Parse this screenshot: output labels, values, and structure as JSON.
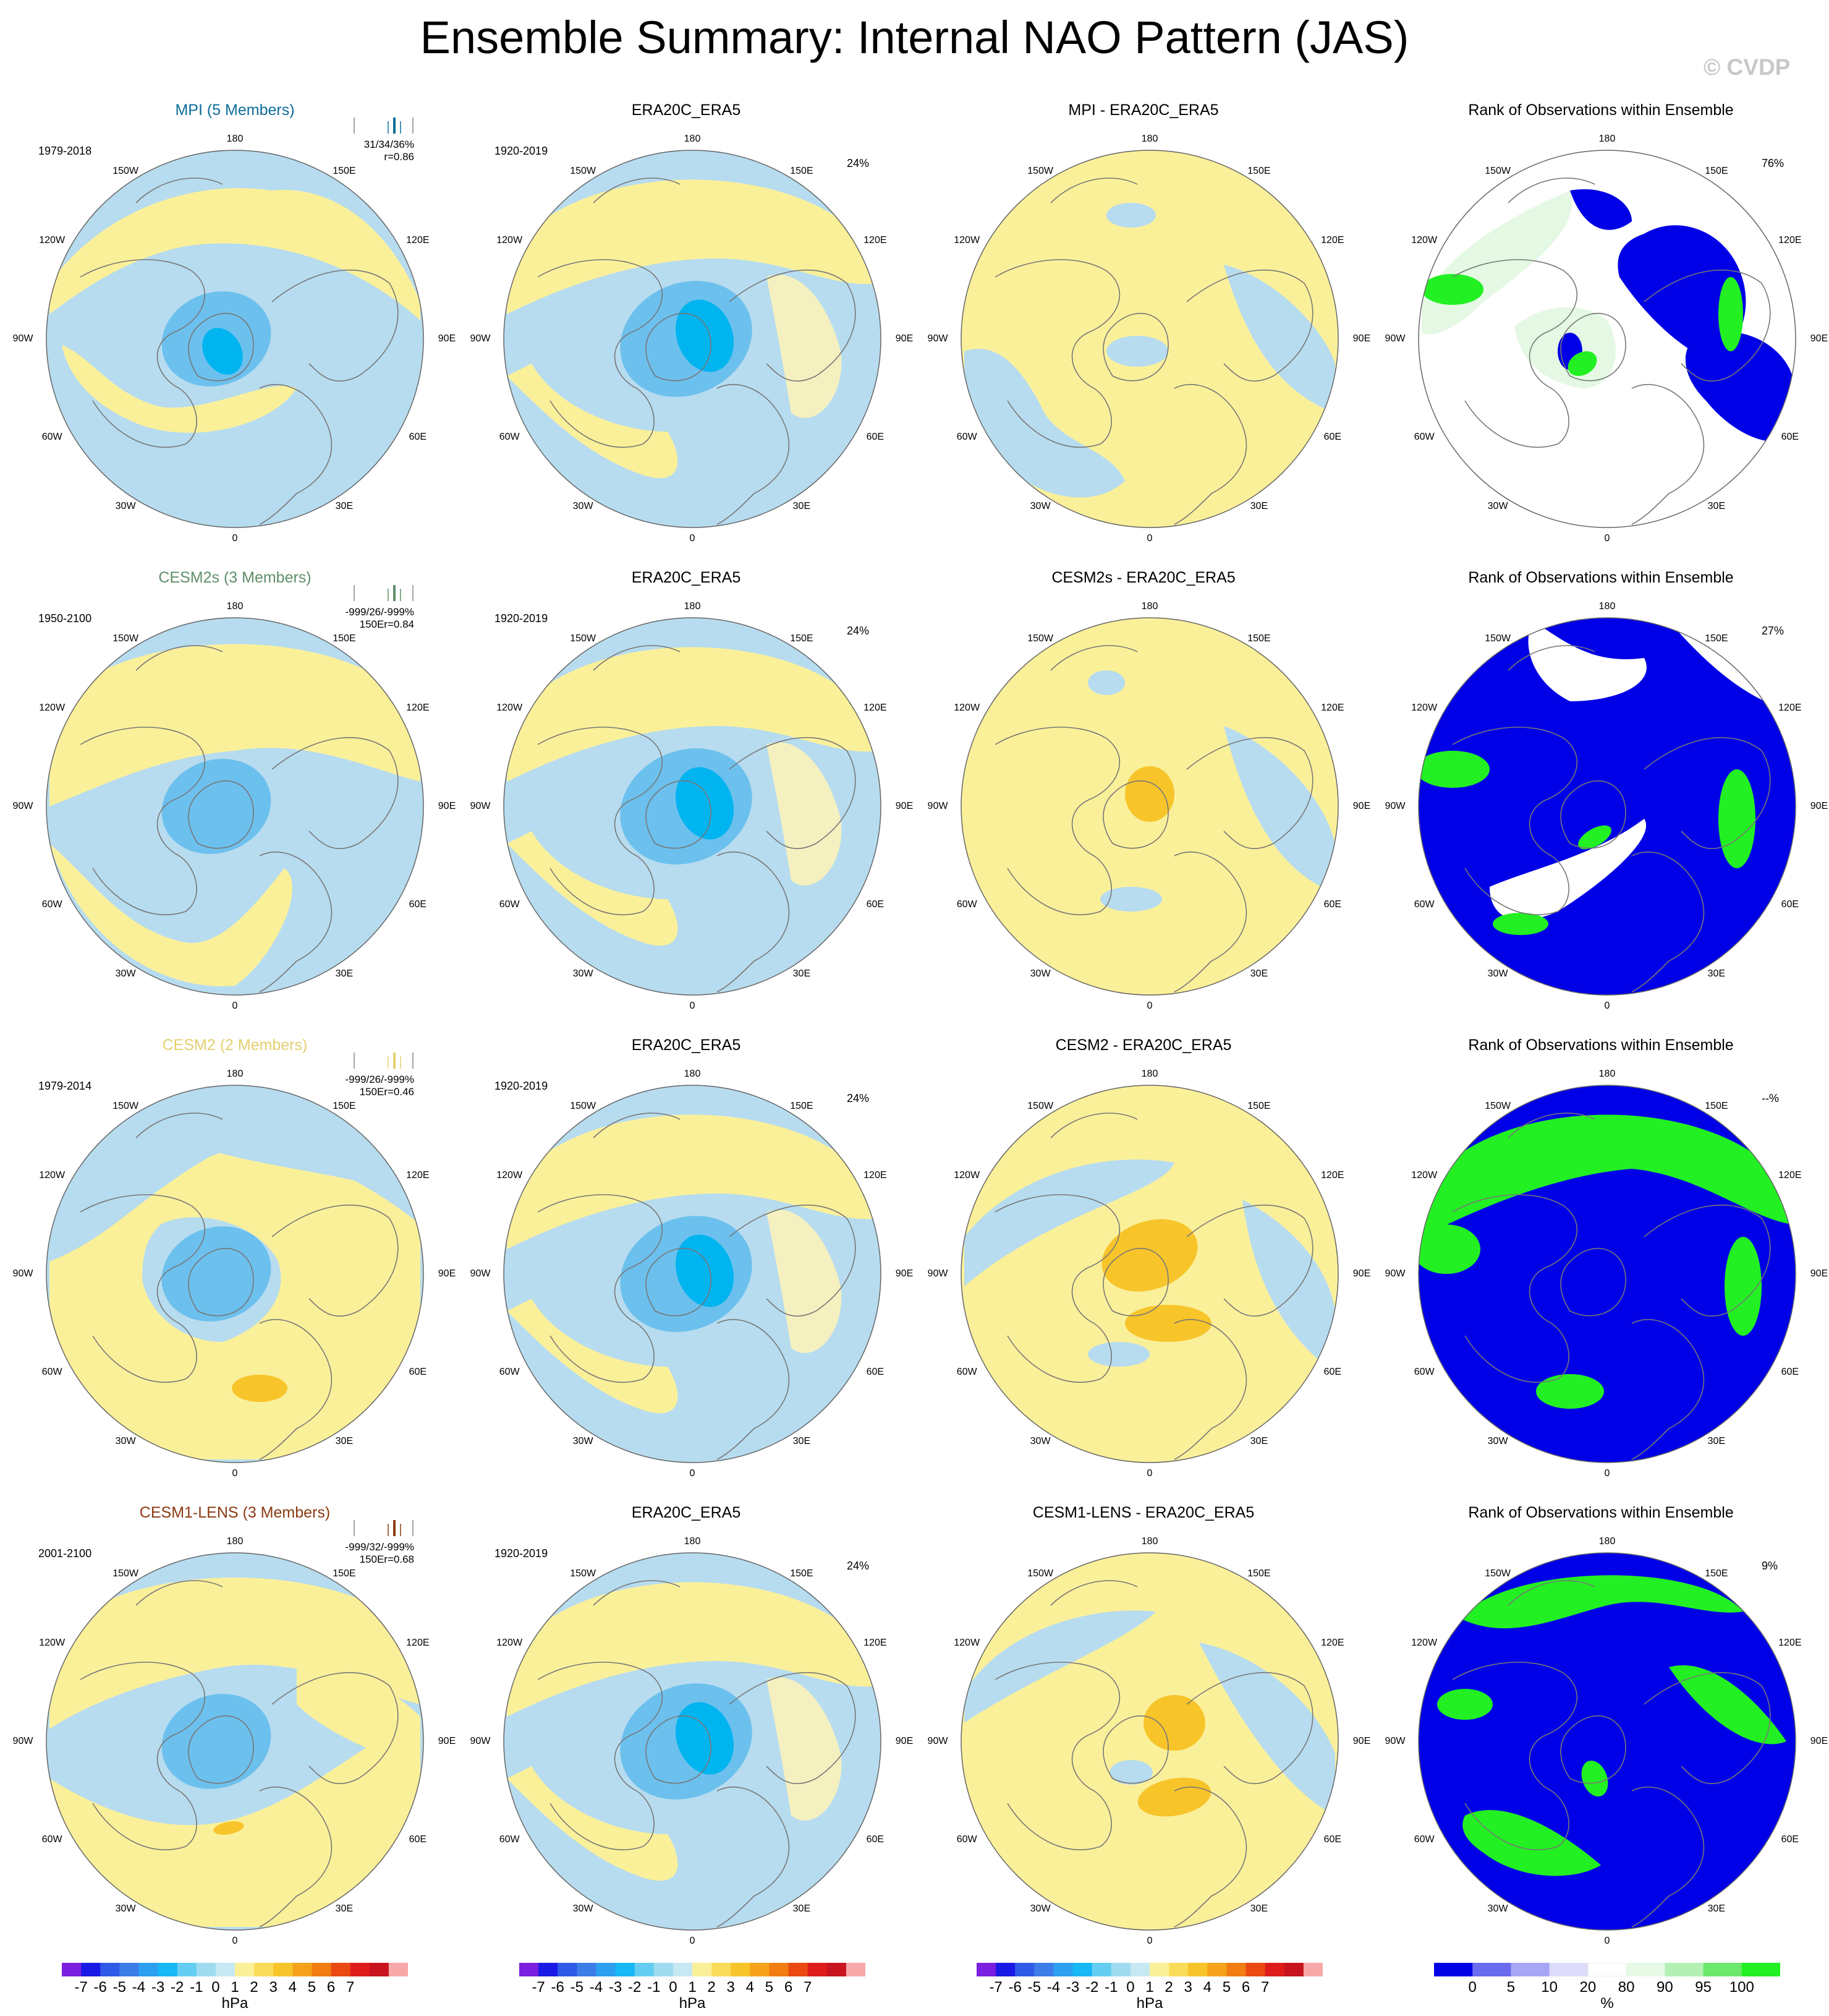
{
  "figure": {
    "title": "Ensemble Summary: Internal NAO Pattern (JAS)",
    "credit": "© CVDP"
  },
  "colors": {
    "land_yellow": "#fbf09a",
    "ocean_blue": "#b7dcef",
    "mid_blue": "#6cc0ee",
    "deep_blue": "#00b4f0",
    "orange": "#f7c42a",
    "rank_blue": "#0000e6",
    "rank_green": "#22f022",
    "rank_pale": "#e4f8e4"
  },
  "longitude_labels": {
    "top": "180",
    "bottom": "0",
    "l150": "150W",
    "r150": "150E",
    "l120": "120W",
    "r120": "120E",
    "l90": "90W",
    "r90": "90E",
    "l60": "60W",
    "r60": "60E",
    "l30": "30W",
    "r30": "30E"
  },
  "rows": [
    {
      "model": {
        "title": "MPI (5 Members)",
        "title_color": "#0e6d9b",
        "period": "1979-2018",
        "stats1": "31/34/36%",
        "stats2": "r=0.86",
        "spark_color": "#0e6d9b"
      },
      "obs": {
        "title": "ERA20C_ERA5",
        "period": "1920-2019",
        "pct": "24%"
      },
      "diff": {
        "title": "MPI - ERA20C_ERA5"
      },
      "rank": {
        "title": "Rank of Observations within Ensemble",
        "pct": "76%"
      }
    },
    {
      "model": {
        "title": "CESM2s (3 Members)",
        "title_color": "#5f8f6b",
        "period": "1950-2100",
        "stats1": "-999/26/-999%",
        "stats2": "150Er=0.84",
        "spark_color": "#5f8f6b"
      },
      "obs": {
        "title": "ERA20C_ERA5",
        "period": "1920-2019",
        "pct": "24%"
      },
      "diff": {
        "title": "CESM2s - ERA20C_ERA5"
      },
      "rank": {
        "title": "Rank of Observations within Ensemble",
        "pct": "27%"
      }
    },
    {
      "model": {
        "title": "CESM2 (2 Members)",
        "title_color": "#e3cf6f",
        "period": "1979-2014",
        "stats1": "-999/26/-999%",
        "stats2": "150Er=0.46",
        "spark_color": "#e3cf6f"
      },
      "obs": {
        "title": "ERA20C_ERA5",
        "period": "1920-2019",
        "pct": "24%"
      },
      "diff": {
        "title": "CESM2 - ERA20C_ERA5"
      },
      "rank": {
        "title": "Rank of Observations within Ensemble",
        "pct": "--%"
      }
    },
    {
      "model": {
        "title": "CESM1-LENS (3 Members)",
        "title_color": "#8b3a12",
        "period": "2001-2100",
        "stats1": "-999/32/-999%",
        "stats2": "150Er=0.68",
        "spark_color": "#8b3a12"
      },
      "obs": {
        "title": "ERA20C_ERA5",
        "period": "1920-2019",
        "pct": "24%"
      },
      "diff": {
        "title": "CESM1-LENS - ERA20C_ERA5"
      },
      "rank": {
        "title": "Rank of Observations within Ensemble",
        "pct": "9%"
      }
    }
  ],
  "colorbars": {
    "hpa": {
      "colors": [
        "#7b1fe0",
        "#1a1ae6",
        "#2f5be8",
        "#3d7de8",
        "#2e9ff0",
        "#17b8f5",
        "#65cdf2",
        "#9fdcf0",
        "#c6e8f2",
        "#fbf09a",
        "#f9dc5a",
        "#f7c42a",
        "#f5a21a",
        "#f27d12",
        "#ea4a12",
        "#df1c1c",
        "#c8141e",
        "#f7a8a8"
      ],
      "labels": [
        "-7",
        "-6",
        "-5",
        "-4",
        "-3",
        "-2",
        "-1",
        "0",
        "1",
        "2",
        "3",
        "4",
        "5",
        "6",
        "7"
      ],
      "unit": "hPa"
    },
    "rank": {
      "colors": [
        "#0000e6",
        "#6b6bf0",
        "#a6a6f5",
        "#dcdcfa",
        "#ffffff",
        "#e6fae6",
        "#b4f0b4",
        "#6ce86c",
        "#22f022"
      ],
      "labels": [
        "0",
        "5",
        "10",
        "20",
        "80",
        "90",
        "95",
        "100"
      ],
      "unit": "%"
    }
  }
}
